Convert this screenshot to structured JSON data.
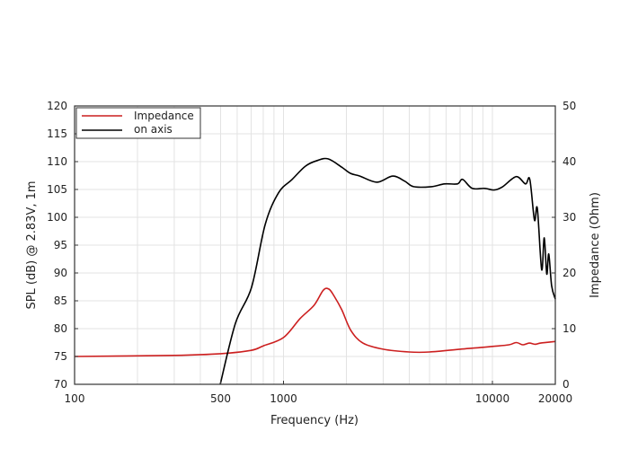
{
  "chart_data": {
    "type": "line",
    "title": "",
    "xlabel": "Frequency (Hz)",
    "ylabel": "SPL (dB) @ 2.83V, 1m",
    "y2label": "Impedance (Ohm)",
    "xscale": "log",
    "xlim": [
      100,
      20000
    ],
    "ylim": [
      70,
      120
    ],
    "y2lim": [
      0,
      50
    ],
    "xticks": [
      100,
      500,
      1000,
      10000,
      20000
    ],
    "xtick_labels": [
      "100",
      "500",
      "1000",
      "10000",
      "20000"
    ],
    "yticks": [
      70,
      75,
      80,
      85,
      90,
      95,
      100,
      105,
      110,
      115,
      120
    ],
    "ytick_labels": [
      "70",
      "75",
      "80",
      "85",
      "90",
      "95",
      "100",
      "105",
      "110",
      "115",
      "120"
    ],
    "y2ticks": [
      0,
      10,
      20,
      30,
      40,
      50
    ],
    "y2tick_labels": [
      "0",
      "10",
      "20",
      "30",
      "40",
      "50"
    ],
    "grid": true,
    "legend_position": "top-left",
    "series": [
      {
        "name": "Impedance",
        "axis": "right",
        "color": "#cc1f1f",
        "x": [
          100,
          300,
          500,
          700,
          800,
          1000,
          1200,
          1400,
          1550,
          1650,
          1750,
          1900,
          2100,
          2400,
          3000,
          4000,
          5000,
          7000,
          10000,
          12000,
          13000,
          14000,
          15000,
          16000,
          17000,
          20000
        ],
        "y": [
          5.0,
          5.2,
          5.5,
          6.1,
          6.9,
          8.4,
          11.8,
          14.2,
          16.9,
          17.1,
          15.8,
          13.4,
          9.7,
          7.4,
          6.3,
          5.8,
          5.8,
          6.3,
          6.8,
          7.1,
          7.5,
          7.1,
          7.4,
          7.2,
          7.4,
          7.7
        ]
      },
      {
        "name": "on axis",
        "axis": "left",
        "color": "#000000",
        "x": [
          498,
          589,
          703,
          817,
          947,
          1100,
          1274,
          1450,
          1633,
          1900,
          2090,
          2320,
          2800,
          3330,
          3800,
          4200,
          5100,
          5900,
          6800,
          7200,
          8000,
          9200,
          10200,
          11200,
          13000,
          14400,
          15100,
          15900,
          16400,
          17200,
          17700,
          18200,
          18600,
          19200,
          20000
        ],
        "y": [
          70,
          81,
          87.4,
          98.7,
          104.4,
          106.8,
          109.2,
          110.2,
          110.5,
          109,
          107.9,
          107.4,
          106.3,
          107.4,
          106.5,
          105.5,
          105.5,
          106,
          106,
          106.8,
          105.2,
          105.2,
          104.9,
          105.5,
          107.3,
          106,
          106.8,
          99.5,
          101.6,
          90.6,
          96.3,
          89.8,
          93.4,
          87.7,
          85.3
        ]
      }
    ]
  }
}
